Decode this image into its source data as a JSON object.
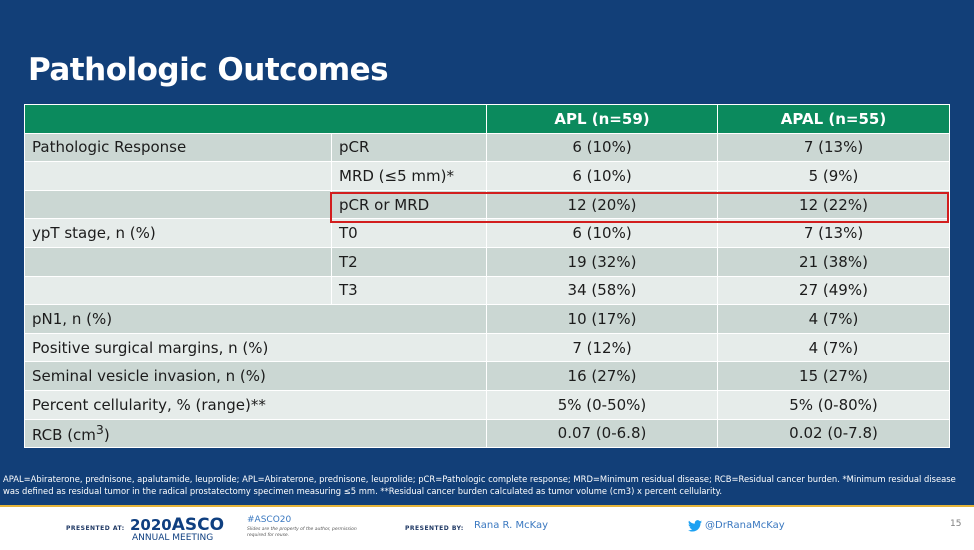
{
  "title": "Pathologic Outcomes",
  "table": {
    "headers": [
      "",
      "",
      "APL (n=59)",
      "APAL (n=55)"
    ],
    "rows": [
      {
        "label": "Pathologic Response",
        "sub": "pCR",
        "apl": "6 (10%)",
        "apal": "7 (13%)"
      },
      {
        "label": "",
        "sub": "MRD (≤5 mm)*",
        "apl": "6 (10%)",
        "apal": "5 (9%)"
      },
      {
        "label": "",
        "sub": "pCR or MRD",
        "apl": "12 (20%)",
        "apal": "12 (22%)"
      },
      {
        "label": "ypT stage, n (%)",
        "sub": "T0",
        "apl": "6 (10%)",
        "apal": "7 (13%)"
      },
      {
        "label": "",
        "sub": "T2",
        "apl": "19 (32%)",
        "apal": "21 (38%)"
      },
      {
        "label": "",
        "sub": "T3",
        "apl": "34 (58%)",
        "apal": "27 (49%)"
      },
      {
        "label": "pN1, n (%)",
        "apl": "10 (17%)",
        "apal": "4 (7%)"
      },
      {
        "label": "Positive surgical margins, n (%)",
        "apl": "7 (12%)",
        "apal": "4 (7%)"
      },
      {
        "label": "Seminal vesicle invasion, n (%)",
        "apl": "16 (27%)",
        "apal": "15 (27%)"
      },
      {
        "label": "Percent cellularity, % (range)**",
        "apl": "5% (0-50%)",
        "apal": "5% (0-80%)"
      },
      {
        "label": "RCB (cm",
        "label_sup": "3",
        "label_suffix": ")",
        "apl": "0.07 (0-6.8)",
        "apal": "0.02 (0-7.8)"
      }
    ]
  },
  "footnote": "APAL=Abiraterone, prednisone, apalutamide, leuprolide; APL=Abiraterone, prednisone, leuprolide; pCR=Pathologic complete response; MRD=Minimum residual disease; RCB=Residual cancer burden. *Minimum residual disease was defined as residual tumor in the radical prostatectomy specimen measuring ≤5 mm. **Residual cancer burden calculated as tumor volume (cm3) x percent cellularity.",
  "footer": {
    "presented_at": "PRESENTED AT:",
    "asco_year": "2020",
    "asco_name": "ASCO",
    "asco_meeting": "ANNUAL MEETING",
    "hashtag": "#ASCO20",
    "disclaimer": "Slides are the property of the author, permission required for reuse.",
    "presented_by": "PRESENTED BY:",
    "presenter": "Rana R. McKay",
    "twitter_handle": "@DrRanaMcKay",
    "page_number": "15",
    "twitter_icon": "twitter-bird-icon"
  },
  "colors": {
    "background": "#123f78",
    "header_green": "#0b8a5d",
    "row_dark": "#cbd7d3",
    "row_light": "#e6ecea",
    "highlight_red": "#d21e1e",
    "footer_accent": "#e4b43a"
  }
}
